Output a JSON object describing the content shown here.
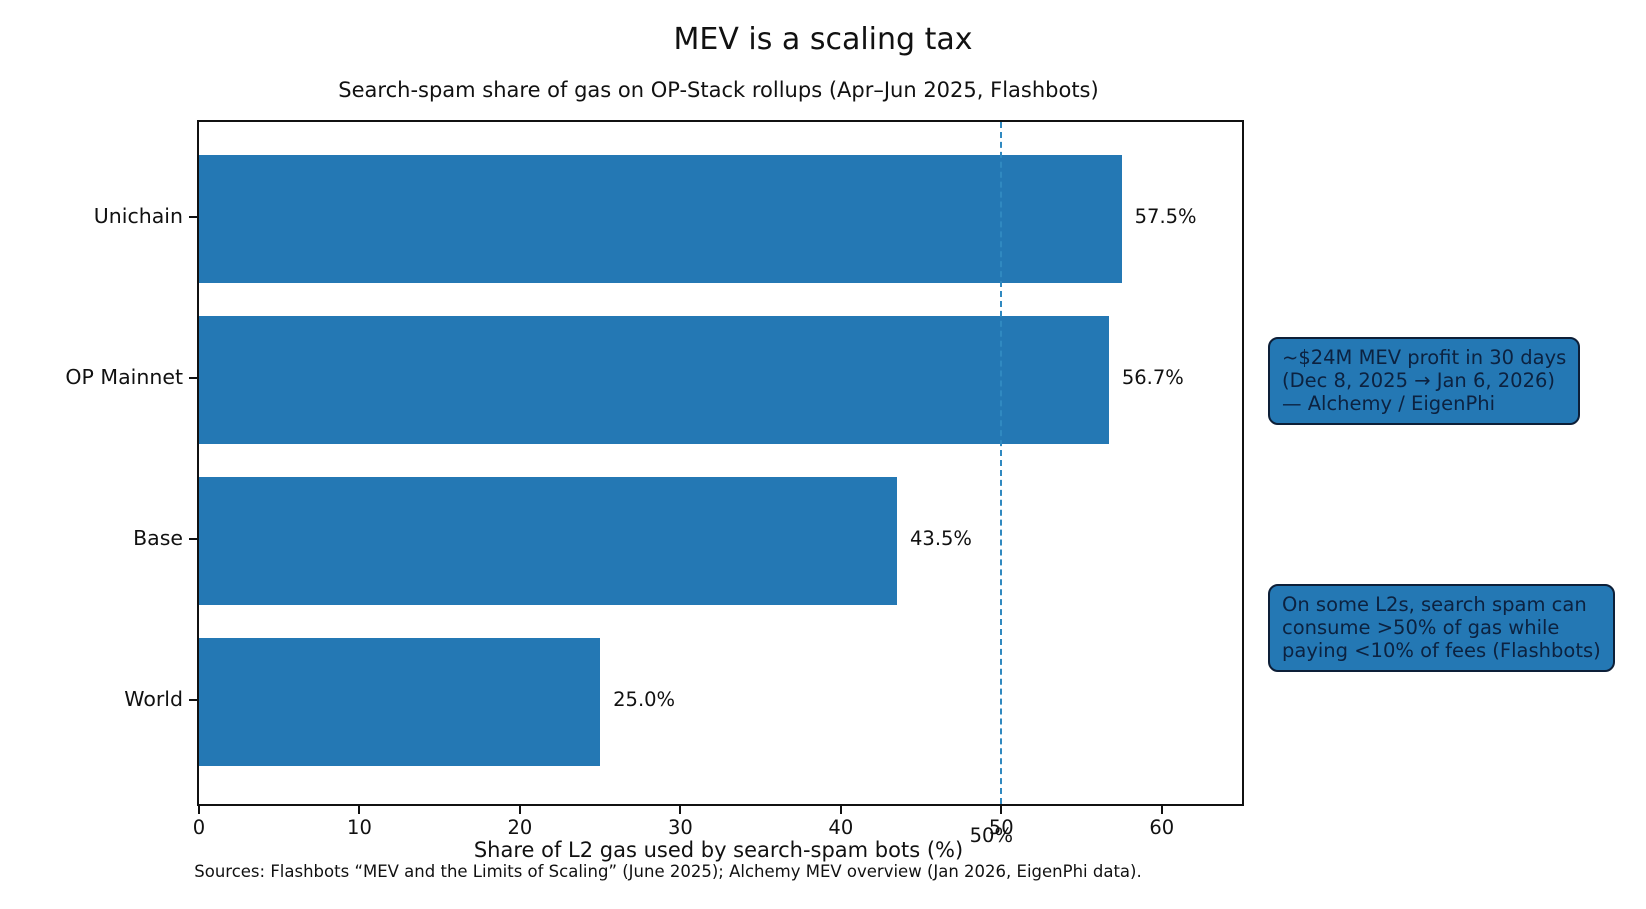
{
  "figure": {
    "title": "MEV is a scaling tax",
    "subtitle": "Search-spam share of gas on OP-Stack rollups (Apr–Jun 2025, Flashbots)",
    "xlabel": "Share of L2 gas used by search-spam bots (%)",
    "source_note": "Sources: Flashbots “MEV and the Limits of Scaling” (June 2025); Alchemy MEV overview (Jan 2026, EigenPhi data)."
  },
  "chart_data": {
    "type": "bar",
    "orientation": "horizontal",
    "title": "MEV is a scaling tax",
    "subtitle": "Search-spam share of gas on OP-Stack rollups (Apr–Jun 2025, Flashbots)",
    "categories": [
      "Unichain",
      "OP Mainnet",
      "Base",
      "World"
    ],
    "values": [
      57.5,
      56.7,
      43.5,
      25.0
    ],
    "value_labels": [
      "57.5%",
      "56.7%",
      "43.5%",
      "25.0%"
    ],
    "xlabel": "Share of L2 gas used by search-spam bots (%)",
    "ylabel": "",
    "xlim": [
      0,
      65
    ],
    "xticks": [
      "0",
      "10",
      "20",
      "30",
      "40",
      "50",
      "60"
    ],
    "xtick_values": [
      0,
      10,
      20,
      30,
      40,
      50,
      60
    ],
    "grid": false,
    "legend": null,
    "reference_line": {
      "value": 50,
      "label": "50%",
      "style": "dashed"
    },
    "colors": {
      "bar": "#2478b4",
      "reference_line": "#3089c0",
      "axis": "#111111",
      "text": "#111111"
    }
  },
  "annotations": [
    {
      "name": "mev-profit-note",
      "text": "~$24M MEV profit in 30 days\n(Dec 8, 2025 → Jan 6, 2026)\n— Alchemy / EigenPhi"
    },
    {
      "name": "spam-share-note",
      "text": "On some L2s, search spam can\nconsume >50% of gas while\npaying <10% of fees (Flashbots)"
    }
  ],
  "annotation_style": {
    "background": "#2478b4",
    "border": "#0d1f38",
    "text_color": "#0c2240"
  }
}
